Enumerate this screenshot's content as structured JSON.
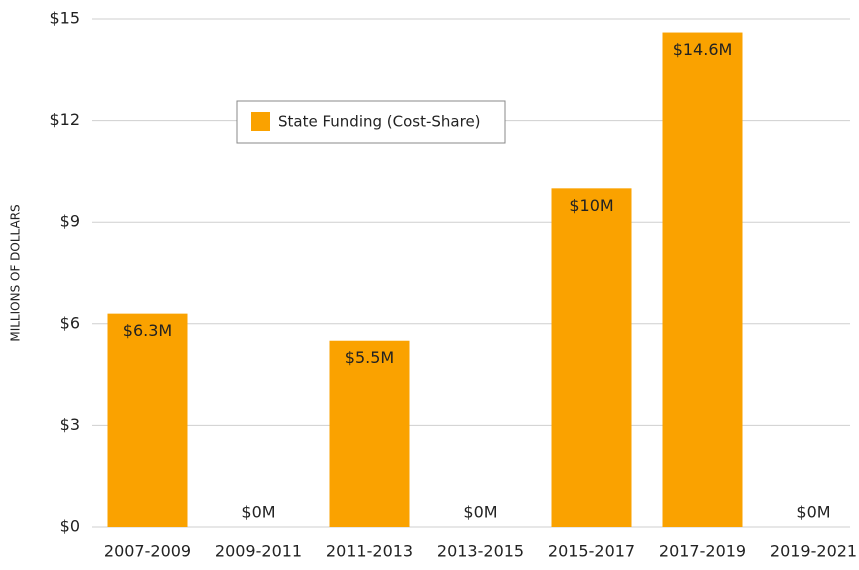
{
  "chart_data": {
    "type": "bar",
    "y_label": "MILLIONS OF DOLLARS",
    "categories": [
      "2007-2009",
      "2009-2011",
      "2011-2013",
      "2013-2015",
      "2015-2017",
      "2017-2019",
      "2019-2021"
    ],
    "series": [
      {
        "name": "State Funding (Cost-Share)",
        "color": "#faa200",
        "values": [
          6.3,
          0,
          5.5,
          0,
          10,
          14.6,
          0
        ],
        "value_labels": [
          "$6.3M",
          "$0M",
          "$5.5M",
          "$0M",
          "$10M",
          "$14.6M",
          "$0M"
        ]
      }
    ],
    "ylim": [
      0,
      15
    ],
    "yticks": [
      {
        "value": 0,
        "label": "$0"
      },
      {
        "value": 3,
        "label": "$3"
      },
      {
        "value": 6,
        "label": "$6"
      },
      {
        "value": 9,
        "label": "$9"
      },
      {
        "value": 12,
        "label": "$12"
      },
      {
        "value": 15,
        "label": "$15"
      }
    ],
    "grid": true,
    "legend": "upper-left"
  }
}
